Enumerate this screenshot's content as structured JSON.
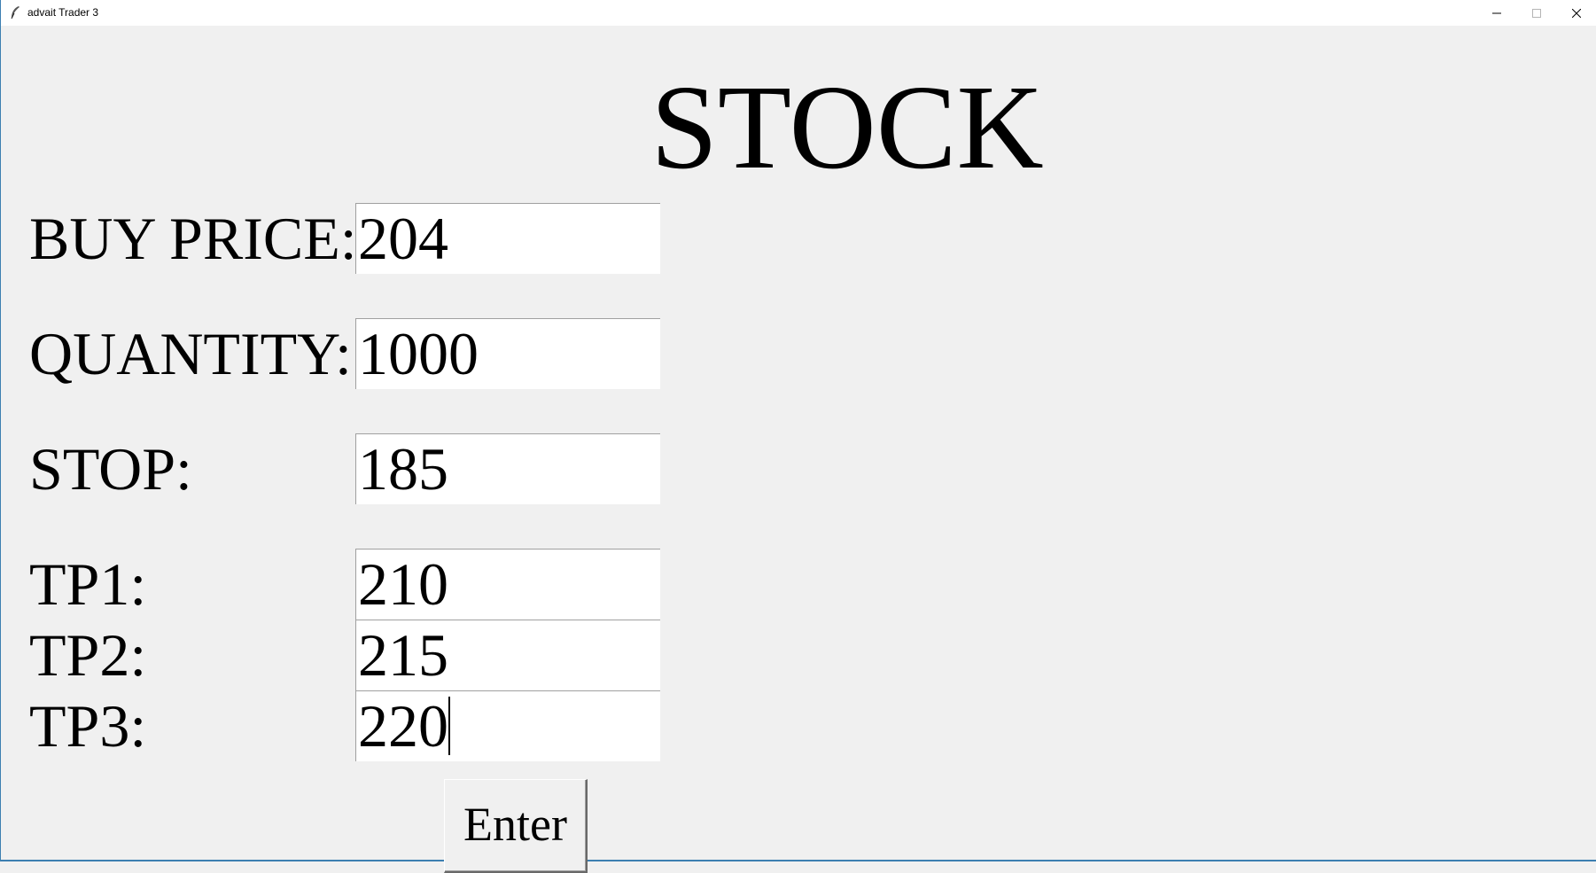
{
  "window": {
    "title": "advait Trader 3",
    "icon": "feather-icon",
    "controls": [
      "minimize-icon",
      "maximize-icon",
      "close-icon"
    ]
  },
  "heading": "STOCK",
  "fields": {
    "buy_price": {
      "label": "BUY PRICE:",
      "value": "204"
    },
    "quantity": {
      "label": "QUANTITY:",
      "value": "1000"
    },
    "stop": {
      "label": "STOP:",
      "value": "185"
    },
    "tp1": {
      "label": "TP1:",
      "value": "210"
    },
    "tp2": {
      "label": "TP2:",
      "value": "215"
    },
    "tp3": {
      "label": "TP3:",
      "value": "220"
    }
  },
  "enter_button": {
    "label": "Enter"
  },
  "colors": {
    "background": "#f0f0f0",
    "entry_background": "#ffffff",
    "window_border": "#3c7fb1"
  }
}
